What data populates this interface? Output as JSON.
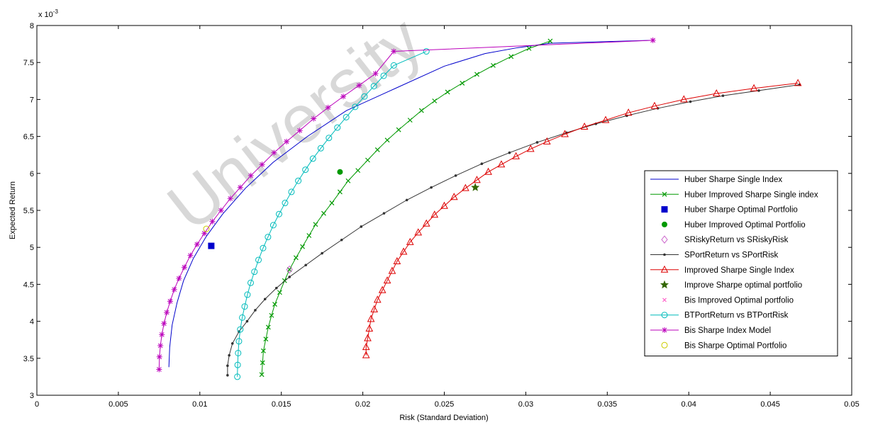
{
  "watermark": "University",
  "chart_data": {
    "type": "line",
    "xlabel": "Risk (Standard Deviation)",
    "ylabel": "Expected Return",
    "y_exponent_label": "x 10",
    "y_exponent_power": "-3",
    "xlim": [
      0,
      0.05
    ],
    "ylim": [
      3,
      8
    ],
    "x_ticks": [
      "0",
      "0.005",
      "0.01",
      "0.015",
      "0.02",
      "0.025",
      "0.03",
      "0.035",
      "0.04",
      "0.045",
      "0.05"
    ],
    "y_ticks": [
      "3",
      "3.5",
      "4",
      "4.5",
      "5",
      "5.5",
      "6",
      "6.5",
      "7",
      "7.5",
      "8"
    ],
    "grid": false,
    "legend_position": "lower-right",
    "series": [
      {
        "name": "Huber Sharpe Single Index",
        "color": "#0000cc",
        "marker": "none",
        "x": [
          0.0081,
          0.00815,
          0.0083,
          0.0086,
          0.009,
          0.0096,
          0.0104,
          0.0114,
          0.0128,
          0.0145,
          0.0166,
          0.019,
          0.022,
          0.025,
          0.0275,
          0.0295,
          0.0315,
          0.0378
        ],
        "y": [
          3.38,
          3.65,
          3.95,
          4.25,
          4.55,
          4.85,
          5.15,
          5.45,
          5.8,
          6.15,
          6.5,
          6.85,
          7.15,
          7.45,
          7.62,
          7.7,
          7.76,
          7.8
        ]
      },
      {
        "name": "Huber Improved Sharpe Single index",
        "color": "#009900",
        "marker": "x",
        "x": [
          0.0138,
          0.01385,
          0.0139,
          0.01405,
          0.0142,
          0.0144,
          0.0146,
          0.0149,
          0.0152,
          0.0155,
          0.0159,
          0.0163,
          0.0167,
          0.0171,
          0.0176,
          0.0181,
          0.0186,
          0.0191,
          0.0197,
          0.0203,
          0.0209,
          0.0215,
          0.0222,
          0.0229,
          0.0236,
          0.0244,
          0.0252,
          0.0261,
          0.027,
          0.028,
          0.0291,
          0.0302,
          0.0315
        ],
        "y": [
          3.28,
          3.44,
          3.6,
          3.76,
          3.92,
          4.08,
          4.23,
          4.39,
          4.55,
          4.7,
          4.86,
          5.01,
          5.16,
          5.31,
          5.46,
          5.6,
          5.75,
          5.9,
          6.04,
          6.18,
          6.32,
          6.45,
          6.59,
          6.72,
          6.85,
          6.98,
          7.1,
          7.22,
          7.34,
          7.46,
          7.58,
          7.69,
          7.79
        ]
      },
      {
        "name": "Huber Sharpe Optimal Portfolio",
        "color": "#0000cc",
        "marker": "square",
        "x": [
          0.0107
        ],
        "y": [
          5.02
        ]
      },
      {
        "name": "Huber Improved Optimal Portfolio",
        "color": "#009900",
        "marker": "dot",
        "x": [
          0.0186
        ],
        "y": [
          6.02
        ]
      },
      {
        "name": "SRiskyReturn vs SRiskyRisk",
        "color": "#cc66cc",
        "marker": "diamond",
        "x": [
          0.0155
        ],
        "y": [
          4.7
        ]
      },
      {
        "name": "SPortReturn vs SPortRisk",
        "color": "#333333",
        "marker": "dot-small",
        "x": [
          0.0117,
          0.0117,
          0.0118,
          0.012,
          0.0124,
          0.0129,
          0.0134,
          0.014,
          0.0147,
          0.0155,
          0.0165,
          0.0175,
          0.0187,
          0.0199,
          0.0213,
          0.0227,
          0.0242,
          0.0257,
          0.0273,
          0.029,
          0.0307,
          0.0325,
          0.0343,
          0.0362,
          0.0381,
          0.0401,
          0.0421,
          0.0443,
          0.0468
        ],
        "y": [
          3.27,
          3.4,
          3.54,
          3.7,
          3.86,
          4.0,
          4.15,
          4.3,
          4.45,
          4.6,
          4.76,
          4.92,
          5.1,
          5.28,
          5.46,
          5.64,
          5.81,
          5.97,
          6.13,
          6.28,
          6.42,
          6.55,
          6.67,
          6.78,
          6.88,
          6.97,
          7.05,
          7.12,
          7.2
        ]
      },
      {
        "name": "Improved Sharpe Single Index",
        "color": "#dd0000",
        "marker": "triangle",
        "x": [
          0.0202,
          0.0202,
          0.0203,
          0.0204,
          0.0205,
          0.0207,
          0.0209,
          0.0212,
          0.0215,
          0.0218,
          0.0221,
          0.0225,
          0.0229,
          0.0234,
          0.0239,
          0.0244,
          0.025,
          0.0256,
          0.0263,
          0.027,
          0.0277,
          0.0285,
          0.0294,
          0.0303,
          0.0313,
          0.0324,
          0.0336,
          0.0349,
          0.0363,
          0.0379,
          0.0397,
          0.0417,
          0.044,
          0.0467
        ],
        "y": [
          3.54,
          3.65,
          3.77,
          3.9,
          4.03,
          4.16,
          4.29,
          4.42,
          4.55,
          4.68,
          4.81,
          4.94,
          5.07,
          5.2,
          5.32,
          5.44,
          5.56,
          5.68,
          5.8,
          5.91,
          6.02,
          6.12,
          6.23,
          6.33,
          6.43,
          6.53,
          6.63,
          6.72,
          6.82,
          6.91,
          7.0,
          7.08,
          7.15,
          7.22
        ]
      },
      {
        "name": "Improve Sharpe optimal portfolio",
        "color": "#336600",
        "marker": "star",
        "x": [
          0.0269
        ],
        "y": [
          5.81
        ]
      },
      {
        "name": "Bis Improved Optimal portfolio",
        "color": "#ff66cc",
        "marker": "x-small",
        "x": [
          0.0378
        ],
        "y": [
          7.8
        ]
      },
      {
        "name": "BTPortReturn vs BTPortRisk",
        "color": "#00bbbb",
        "marker": "circle",
        "x": [
          0.0123,
          0.01232,
          0.01235,
          0.0124,
          0.01248,
          0.0126,
          0.01275,
          0.01292,
          0.01312,
          0.01335,
          0.0136,
          0.01388,
          0.01418,
          0.01451,
          0.01486,
          0.01523,
          0.01562,
          0.01604,
          0.01648,
          0.01694,
          0.01742,
          0.01792,
          0.01844,
          0.01898,
          0.01953,
          0.0201,
          0.02068,
          0.02128,
          0.0219,
          0.0239
        ],
        "y": [
          3.25,
          3.41,
          3.57,
          3.73,
          3.89,
          4.05,
          4.2,
          4.36,
          4.52,
          4.67,
          4.83,
          4.99,
          5.14,
          5.3,
          5.45,
          5.6,
          5.75,
          5.9,
          6.05,
          6.2,
          6.34,
          6.48,
          6.62,
          6.76,
          6.9,
          7.04,
          7.18,
          7.32,
          7.46,
          7.65
        ]
      },
      {
        "name": "Bis Sharpe Index Model",
        "color": "#bb00bb",
        "marker": "asterisk",
        "x": [
          0.0075,
          0.00752,
          0.00758,
          0.00767,
          0.0078,
          0.00797,
          0.00818,
          0.00843,
          0.00872,
          0.00905,
          0.00942,
          0.00983,
          0.01028,
          0.01077,
          0.0113,
          0.01187,
          0.01248,
          0.01313,
          0.01382,
          0.01455,
          0.01532,
          0.01613,
          0.01698,
          0.01787,
          0.0188,
          0.01977,
          0.02078,
          0.0219,
          0.0378
        ],
        "y": [
          3.35,
          3.52,
          3.67,
          3.82,
          3.97,
          4.12,
          4.27,
          4.43,
          4.58,
          4.73,
          4.89,
          5.04,
          5.19,
          5.35,
          5.5,
          5.66,
          5.81,
          5.97,
          6.12,
          6.28,
          6.43,
          6.58,
          6.74,
          6.89,
          7.04,
          7.19,
          7.35,
          7.65,
          7.8
        ]
      },
      {
        "name": "Bis Sharpe Optimal Portfolio",
        "color": "#cccc00",
        "marker": "circle",
        "x": [
          0.0104
        ],
        "y": [
          5.25
        ]
      }
    ]
  }
}
